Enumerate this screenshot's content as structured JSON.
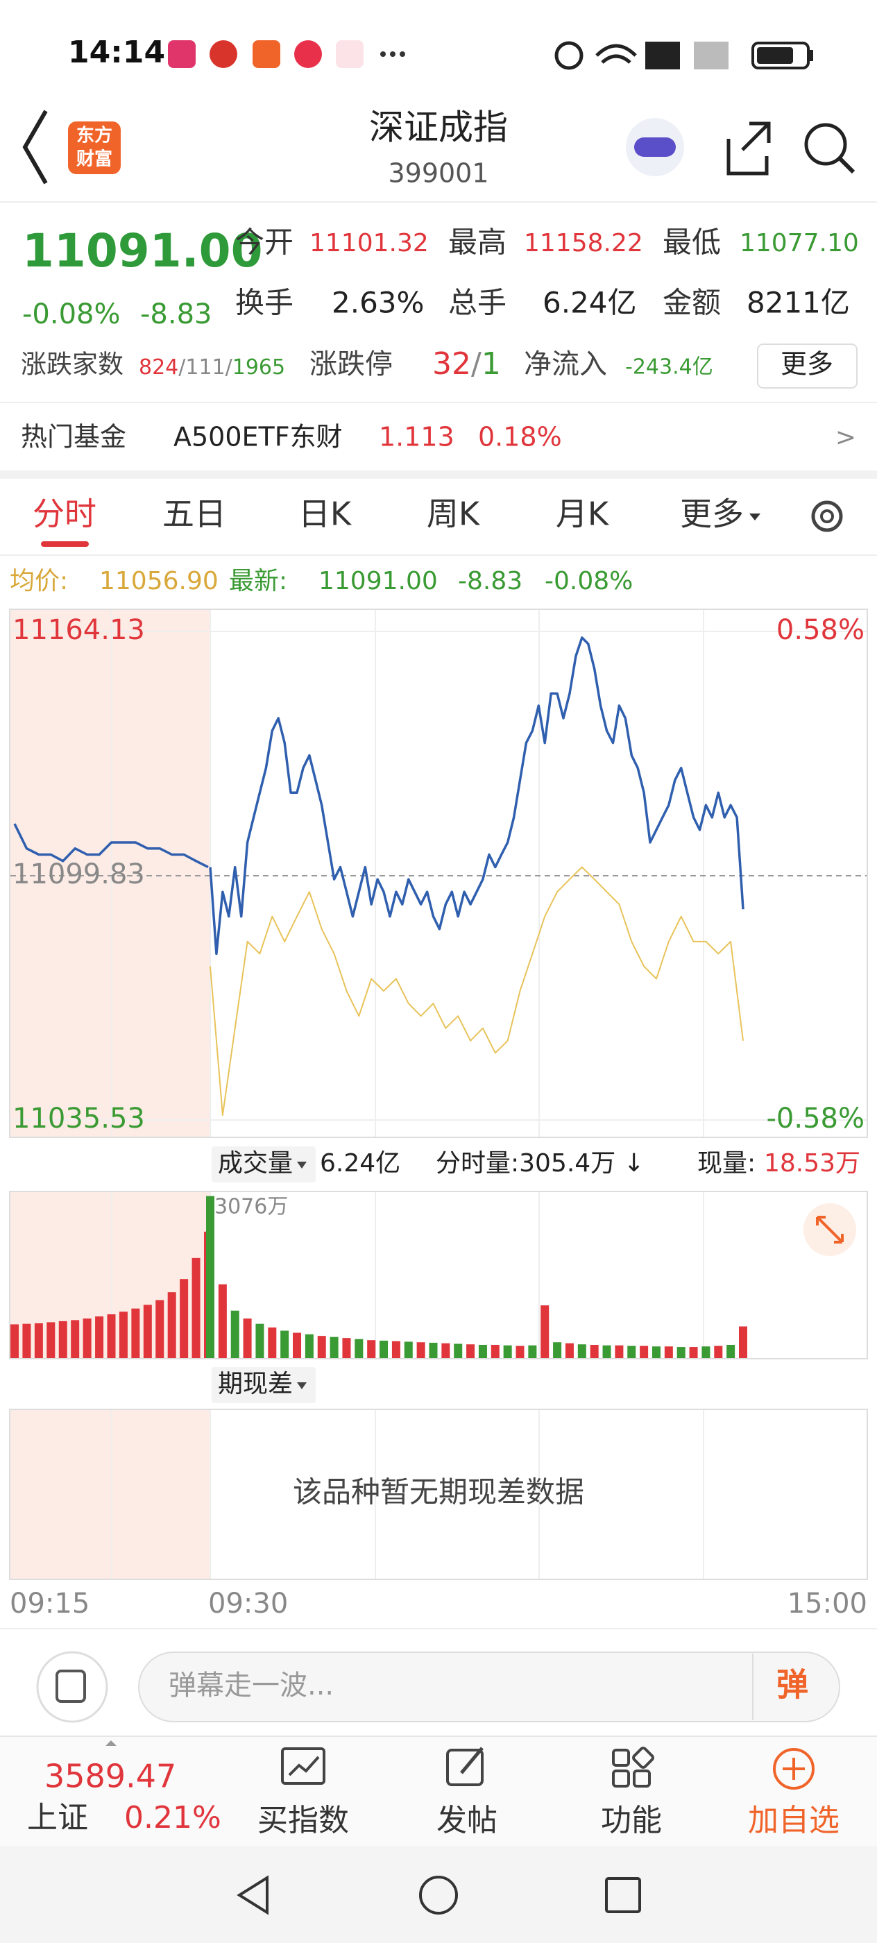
{
  "status_bar": {
    "time": "14:14"
  },
  "header": {
    "logo": [
      "东方",
      "财富"
    ],
    "title": "深证成指",
    "code": "399001"
  },
  "quote": {
    "price": "11091.00",
    "change_pct": "-0.08%",
    "change": "-8.83",
    "stats": [
      {
        "label": "今开",
        "value": "11101.32"
      },
      {
        "label": "最高",
        "value": "11158.22"
      },
      {
        "label": "最低",
        "value": "11077.10"
      },
      {
        "label": "换手",
        "value": "2.63%"
      },
      {
        "label": "总手",
        "value": "6.24亿"
      },
      {
        "label": "金额",
        "value": "8211亿"
      }
    ],
    "breadth": {
      "label": "涨跌家数",
      "up": "824",
      "sep": "/",
      "flat": "111",
      "down": "1965"
    },
    "limits": {
      "label": "涨跌停",
      "up": "32",
      "sep": "/",
      "down": "1"
    },
    "net_inflow": {
      "label": "净流入",
      "value": "-243.4亿"
    },
    "more": "更多"
  },
  "fund": {
    "label": "热门基金",
    "name": "A500ETF东财",
    "price": "1.113",
    "change": "0.18%",
    "arrow": ">"
  },
  "tabs": [
    "分时",
    "五日",
    "日K",
    "周K",
    "月K",
    "更多"
  ],
  "legend": {
    "avg_label": "均价:",
    "avg": "11056.90",
    "last_label": "最新:",
    "last": "11091.00",
    "change": "-8.83",
    "change_pct": "-0.08%"
  },
  "chart_data": [
    {
      "type": "line",
      "ylim": [
        11035.53,
        11164.13
      ],
      "yticks": [
        11164.13,
        11099.83,
        11035.53
      ],
      "pct_labels": [
        "0.58%",
        "-0.58%"
      ],
      "grid": true,
      "series": [
        {
          "color": "#2f5fae",
          "values": [
            11113.5,
            11107.0,
            11105.4,
            11105.4,
            11103.7,
            11107.0,
            11105.4,
            11105.4,
            11108.6,
            11108.6,
            11108.6,
            11107.0,
            11107.0,
            11105.4,
            11105.4,
            11103.7,
            11102.1
          ]
        },
        {
          "color": "#2f5fae",
          "values": [
            11102.1,
            11079.3,
            11095.6,
            11089.1,
            11102.1,
            11089.1,
            11108.6,
            11115.2,
            11121.7,
            11128.2,
            11138.0,
            11141.3,
            11134.8,
            11121.7,
            11121.7,
            11128.2,
            11131.5,
            11125.0,
            11118.4,
            11108.6,
            11098.9,
            11102.1,
            11095.6,
            11089.1,
            11095.6,
            11102.1,
            11092.3,
            11098.9,
            11095.6,
            11089.1,
            11095.6,
            11092.3,
            11098.9,
            11095.6,
            11092.3,
            11095.6,
            11089.1,
            11085.8,
            11092.3,
            11095.6,
            11089.1,
            11095.6,
            11092.3,
            11095.6,
            11098.9,
            11105.4,
            11102.1,
            11105.4,
            11108.6,
            11115.2,
            11125.0,
            11134.8,
            11138.0,
            11144.6,
            11134.8,
            11147.8,
            11147.8,
            11141.3,
            11147.8,
            11157.6,
            11162.5,
            11160.9,
            11154.3,
            11144.6,
            11138.0,
            11134.8,
            11144.6,
            11141.3,
            11131.5,
            11128.2,
            11121.7,
            11108.6,
            11111.9,
            11115.2,
            11118.4,
            11125.0,
            11128.2,
            11121.7,
            11115.2,
            11111.9,
            11118.4,
            11115.2,
            11121.7,
            11115.2,
            11118.4,
            11115.2,
            11091.0
          ]
        },
        {
          "color": "#e8c35a",
          "values": [
            11076.0,
            11036.8,
            11059.7,
            11082.5,
            11079.3,
            11089.1,
            11082.5,
            11089.1,
            11095.6,
            11085.8,
            11079.3,
            11069.5,
            11062.9,
            11072.7,
            11069.5,
            11072.7,
            11066.2,
            11062.9,
            11066.2,
            11059.7,
            11062.9,
            11056.4,
            11059.7,
            11053.2,
            11056.4,
            11069.5,
            11079.3,
            11089.1,
            11095.6,
            11098.9,
            11102.1,
            11098.9,
            11095.6,
            11092.3,
            11082.5,
            11076.0,
            11072.7,
            11082.5,
            11089.1,
            11082.5,
            11082.5,
            11079.3,
            11082.5,
            11056.4
          ]
        }
      ]
    },
    {
      "type": "bar",
      "title": "成交量",
      "total": "6.24亿",
      "minute": "分时量:305.4万 ↓",
      "now_label": "现量:",
      "now": "18.53万",
      "peak_label": "3076万",
      "ylim": [
        0,
        3150
      ],
      "series": [
        {
          "colors": [
            "#e0353b"
          ],
          "values": [
            640,
            650,
            660,
            680,
            700,
            720,
            750,
            790,
            830,
            880,
            940,
            1010,
            1100,
            1250,
            1500,
            1900,
            2400
          ]
        },
        {
          "colors": [
            "#3a9a33",
            "#e0353b"
          ],
          "values": [
            3076,
            1400,
            900,
            750,
            650,
            580,
            520,
            480,
            450,
            420,
            400,
            380,
            360,
            340,
            330,
            320,
            310,
            300,
            290,
            280,
            270,
            260,
            250,
            250,
            240,
            230,
            240,
            1000,
            300,
            280,
            260,
            250,
            240,
            240,
            230,
            230,
            220,
            220,
            210,
            210,
            220,
            230,
            250,
            600
          ]
        }
      ]
    }
  ],
  "basis": {
    "title": "期现差",
    "message": "该品种暂无期现差数据"
  },
  "time_axis": [
    "09:15",
    "09:30",
    "15:00"
  ],
  "comment": {
    "placeholder": "弹幕走一波...",
    "button": "弹"
  },
  "bottom_bar": {
    "index_value": "3589.47",
    "index_name": "上证",
    "index_change": "0.21%",
    "items": [
      "买指数",
      "发帖",
      "功能",
      "加自选"
    ]
  }
}
